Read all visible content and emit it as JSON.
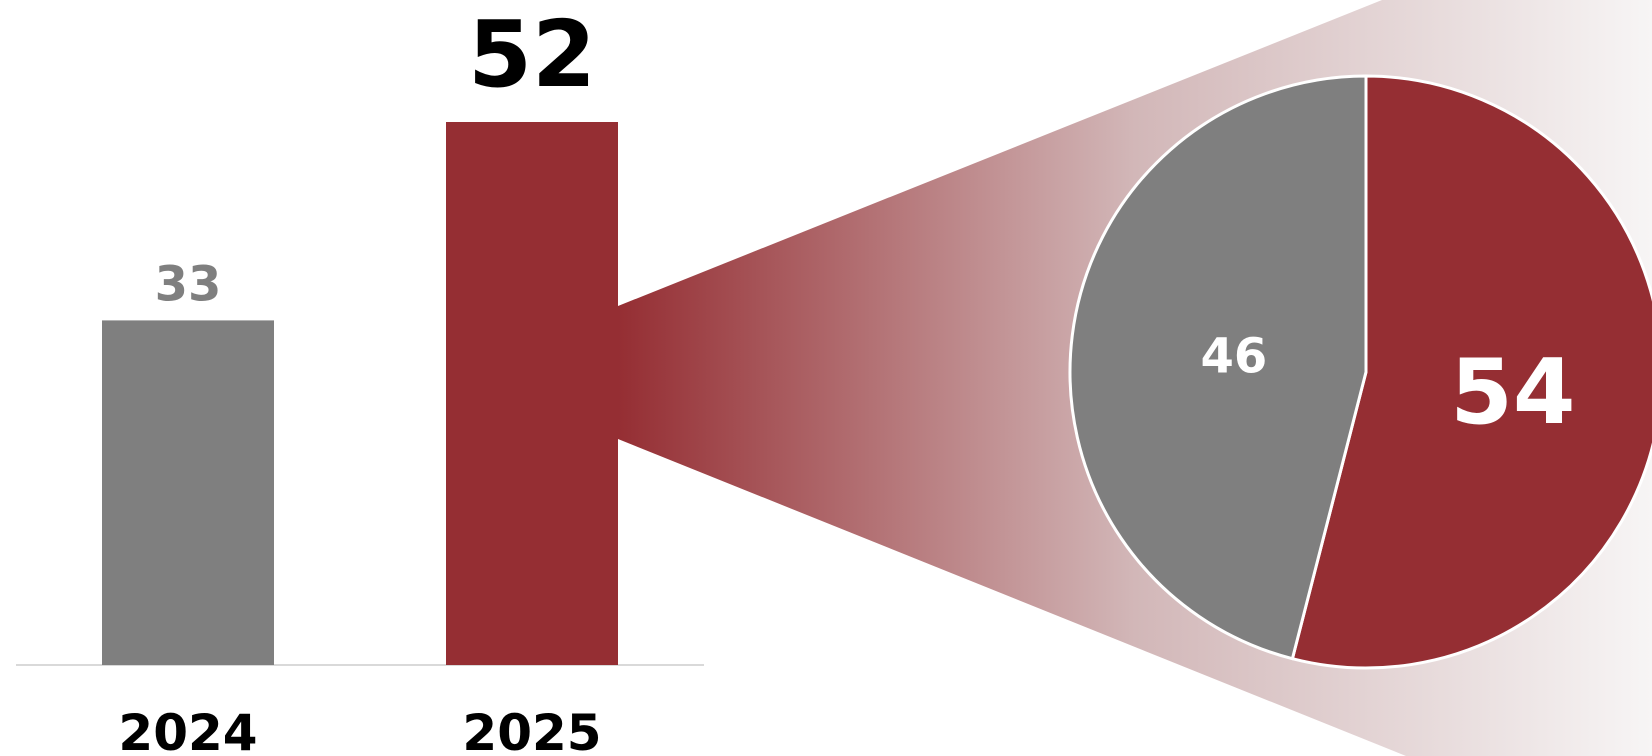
{
  "chart_data": [
    {
      "type": "bar",
      "title": "",
      "xlabel": "",
      "ylabel": "",
      "categories": [
        "2024",
        "2025"
      ],
      "values": [
        33,
        52
      ],
      "value_labels": [
        "33",
        "52"
      ],
      "colors": [
        "#7f7f7f",
        "#952e33"
      ],
      "label_colors": [
        "#7f7f7f",
        "#000000"
      ],
      "ylim": [
        0,
        52
      ],
      "grid": false,
      "legend": "none"
    },
    {
      "type": "pie",
      "title": "",
      "labels": [
        "54",
        "46"
      ],
      "values": [
        54,
        46
      ],
      "colors": [
        "#952e33",
        "#7f7f7f"
      ],
      "label_colors": [
        "#ffffff",
        "#ffffff"
      ],
      "start": "top",
      "direction": "clockwise",
      "exploded_from": "2025",
      "legend": "none"
    }
  ],
  "theme": {
    "accent": "#952e33",
    "neutral": "#7f7f7f",
    "baseline": "#d9d9d9",
    "cone_fade": "#f7f5f5",
    "pie_border": "#ffffff"
  }
}
